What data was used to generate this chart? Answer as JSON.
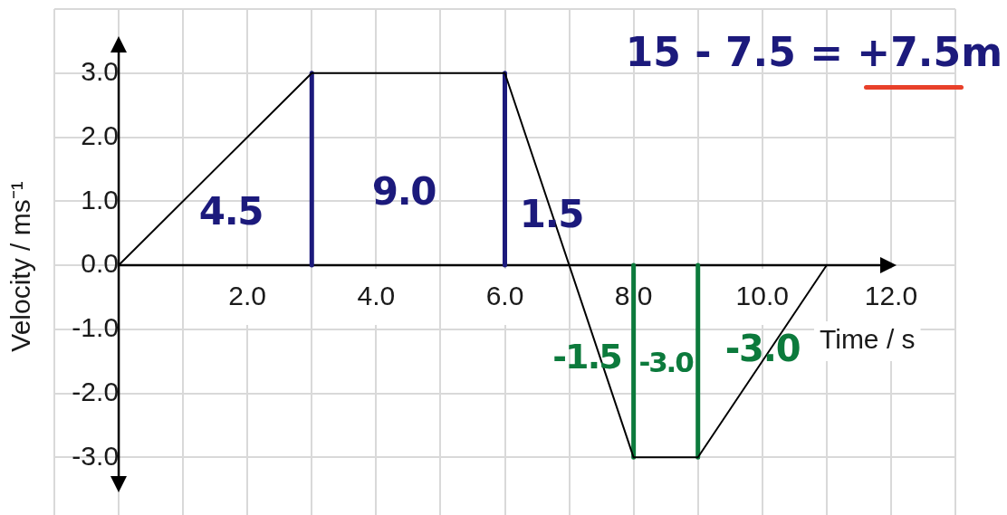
{
  "chart_data": {
    "type": "line",
    "xlabel": "Time / s",
    "ylabel": "Velocity / ms⁻¹",
    "xlim": [
      -1,
      13
    ],
    "ylim": [
      -3.9,
      4
    ],
    "xticks": [
      {
        "value": -1,
        "label": null
      },
      {
        "value": 0,
        "label": null
      },
      {
        "value": 1,
        "label": null
      },
      {
        "value": 2,
        "label": "2.0"
      },
      {
        "value": 3,
        "label": null
      },
      {
        "value": 4,
        "label": "4.0"
      },
      {
        "value": 5,
        "label": null
      },
      {
        "value": 6,
        "label": "6.0"
      },
      {
        "value": 7,
        "label": null
      },
      {
        "value": 8,
        "label": "8.0"
      },
      {
        "value": 9,
        "label": null
      },
      {
        "value": 10,
        "label": "10.0"
      },
      {
        "value": 11,
        "label": null
      },
      {
        "value": 12,
        "label": "12.0"
      },
      {
        "value": 13,
        "label": null
      }
    ],
    "yticks": [
      {
        "value": -3,
        "label": "-3.0"
      },
      {
        "value": -2,
        "label": "-2.0"
      },
      {
        "value": -1,
        "label": "-1.0"
      },
      {
        "value": 0,
        "label": "0.0"
      },
      {
        "value": 1,
        "label": "1.0"
      },
      {
        "value": 2,
        "label": "2.0"
      },
      {
        "value": 3,
        "label": "3.0"
      },
      {
        "value": 4,
        "label": null
      }
    ],
    "grid": true,
    "series": [
      {
        "color": "#000000",
        "x": [
          0,
          3,
          6,
          8,
          9,
          11
        ],
        "values": [
          0,
          3,
          3,
          -3,
          -3,
          0
        ]
      },
      {
        "color": "#1c1a7c",
        "x": [
          3,
          3
        ],
        "values": [
          0,
          3
        ]
      },
      {
        "color": "#1c1a7c",
        "x": [
          6,
          6
        ],
        "values": [
          0,
          3
        ]
      },
      {
        "color": "#0c7a3c",
        "x": [
          8,
          8
        ],
        "values": [
          0,
          -3
        ]
      },
      {
        "color": "#0c7a3c",
        "x": [
          9,
          9
        ],
        "values": [
          0,
          -3
        ]
      }
    ],
    "annotations": [
      "4.5",
      "9.0",
      "1.5",
      "-1.5",
      "-3.0",
      "-3.0",
      "15 - 7.5 = +7.5m"
    ]
  }
}
